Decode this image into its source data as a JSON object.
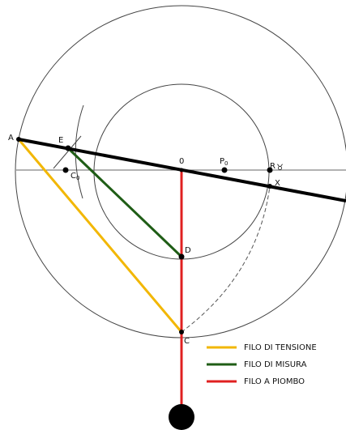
{
  "points": {
    "A": "A",
    "E": "E",
    "O": "0",
    "P": "P",
    "P_sub": "0",
    "R": "R",
    "taurus": "♉",
    "X": "X",
    "C0": "C",
    "C0_sub": "0",
    "D": "D",
    "C": "C"
  },
  "legend": {
    "items": [
      {
        "label": "FILO DI TENSIONE",
        "color": "#f2b705"
      },
      {
        "label": "FILO DI MISURA",
        "color": "#1f5d16"
      },
      {
        "label": "FILO A PIOMBO",
        "color": "#e02020"
      }
    ]
  },
  "colors": {
    "outline": "#444444",
    "main_line": "#000000",
    "plumb_bob": "#000000"
  }
}
